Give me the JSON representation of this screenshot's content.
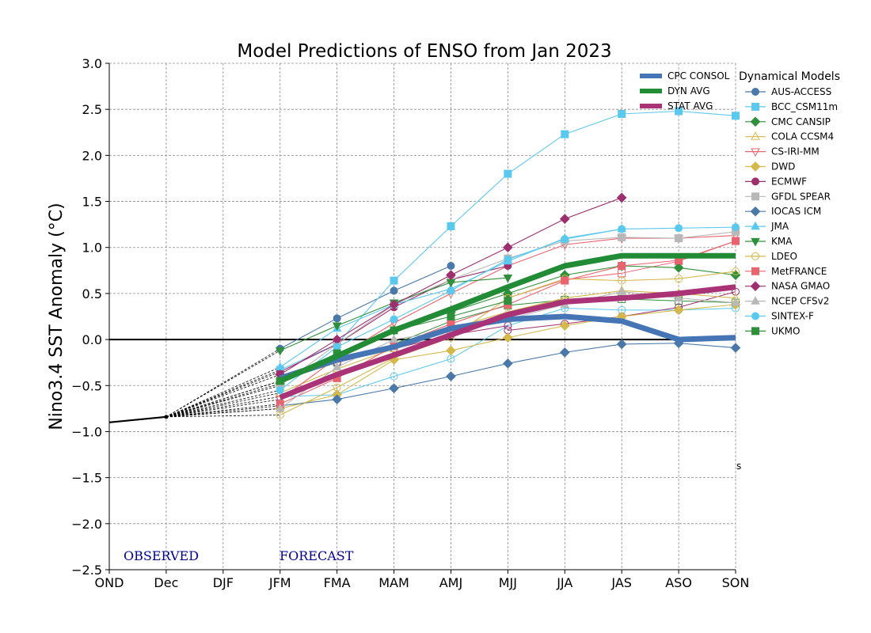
{
  "chart_data": {
    "type": "line",
    "title": "Model Predictions of ENSO from Jan 2023",
    "ylabel": "Nino3.4 SST Anomaly (°C)",
    "xlabel": "",
    "categories": [
      "OND",
      "Dec",
      "DJF",
      "JFM",
      "FMA",
      "MAM",
      "AMJ",
      "MJJ",
      "JJA",
      "JAS",
      "ASO",
      "SON"
    ],
    "ylim": [
      -2.5,
      3.0
    ],
    "yticks": [
      -2.5,
      -2.0,
      -1.5,
      -1.0,
      -0.5,
      0.0,
      0.5,
      1.0,
      1.5,
      2.0,
      2.5,
      3.0
    ],
    "grid": true,
    "legend_position": "top-right, outside",
    "legend_title": "Dynamical Models",
    "annotations": {
      "observed": "OBSERVED",
      "forecast": "FORECAST",
      "stray_mark": "s"
    },
    "observed": {
      "x": [
        "OND",
        "Dec"
      ],
      "values": [
        -0.9,
        -0.84
      ]
    },
    "consensus": [
      {
        "name": "CPC CONSOL",
        "color": "#4575b4",
        "x": [
          "JFM",
          "FMA",
          "MAM",
          "AMJ",
          "MJJ",
          "JJA",
          "JAS",
          "ASO",
          "SON"
        ],
        "values": [
          -0.42,
          -0.22,
          -0.08,
          0.12,
          0.22,
          0.25,
          0.2,
          0.0,
          0.02
        ]
      },
      {
        "name": "DYN AVG",
        "color": "#228b35",
        "x": [
          "JFM",
          "FMA",
          "MAM",
          "AMJ",
          "MJJ",
          "JJA",
          "JAS",
          "ASO",
          "SON"
        ],
        "values": [
          -0.45,
          -0.18,
          0.1,
          0.33,
          0.57,
          0.8,
          0.91,
          0.91,
          0.91
        ]
      },
      {
        "name": "STAT AVG",
        "color": "#aa3377",
        "x": [
          "JFM",
          "FMA",
          "MAM",
          "AMJ",
          "MJJ",
          "JJA",
          "JAS",
          "ASO",
          "SON"
        ],
        "values": [
          -0.63,
          -0.38,
          -0.17,
          0.05,
          0.27,
          0.41,
          0.45,
          0.5,
          0.57
        ]
      }
    ],
    "series": [
      {
        "name": "AUS-ACCESS",
        "color": "#4a78a8",
        "marker": "o",
        "filled": true,
        "x": [
          "JFM",
          "FMA",
          "MAM",
          "AMJ"
        ],
        "values": [
          -0.1,
          0.23,
          0.53,
          0.8
        ]
      },
      {
        "name": "BCC_CSM11m",
        "color": "#5bc8ee",
        "marker": "s",
        "filled": true,
        "x": [
          "JFM",
          "FMA",
          "MAM",
          "AMJ",
          "MJJ",
          "JJA",
          "JAS",
          "ASO",
          "SON"
        ],
        "values": [
          -0.33,
          -0.05,
          0.64,
          1.23,
          1.8,
          2.23,
          2.45,
          2.48,
          2.43
        ]
      },
      {
        "name": "CMC CANSIP",
        "color": "#2f8f3a",
        "marker": "D",
        "filled": true,
        "x": [
          "JFM",
          "FMA",
          "MAM",
          "AMJ",
          "MJJ",
          "JJA",
          "JAS",
          "ASO",
          "SON"
        ],
        "values": [
          -0.48,
          -0.2,
          0.1,
          0.3,
          0.5,
          0.7,
          0.8,
          0.78,
          0.7
        ]
      },
      {
        "name": "COLA CCSM4",
        "color": "#d4b84a",
        "marker": "^",
        "filled": false,
        "x": [
          "JFM",
          "FMA",
          "MAM",
          "AMJ",
          "MJJ",
          "JJA",
          "JAS",
          "ASO",
          "SON"
        ],
        "values": [
          -0.58,
          -0.32,
          -0.1,
          0.12,
          0.3,
          0.45,
          0.53,
          0.5,
          0.45
        ]
      },
      {
        "name": "CS-IRI-MM",
        "color": "#e8646e",
        "marker": "v",
        "filled": false,
        "x": [
          "JFM",
          "FMA",
          "MAM",
          "AMJ",
          "MJJ",
          "JJA",
          "JAS",
          "ASO",
          "SON"
        ],
        "values": [
          -0.65,
          -0.2,
          0.18,
          0.5,
          0.8,
          1.03,
          1.1,
          1.1,
          1.13
        ]
      },
      {
        "name": "DWD",
        "color": "#d4b84a",
        "marker": "D",
        "filled": true,
        "x": [
          "JFM",
          "FMA",
          "MAM",
          "AMJ",
          "MJJ",
          "JJA",
          "JAS",
          "ASO",
          "SON"
        ],
        "values": [
          -0.75,
          -0.6,
          -0.22,
          -0.12,
          0.02,
          0.15,
          0.25,
          0.32,
          0.38
        ]
      },
      {
        "name": "ECMWF",
        "color": "#9e2f6e",
        "marker": "o",
        "filled": true,
        "x": [
          "JFM",
          "FMA",
          "MAM",
          "AMJ",
          "MJJ"
        ],
        "values": [
          -0.35,
          -0.05,
          0.35,
          0.65,
          0.8
        ]
      },
      {
        "name": "GFDL SPEAR",
        "color": "#b8b8b8",
        "marker": "s",
        "filled": true,
        "x": [
          "JFM",
          "FMA",
          "MAM",
          "AMJ",
          "MJJ",
          "JJA",
          "JAS",
          "ASO",
          "SON"
        ],
        "values": [
          -0.5,
          -0.05,
          0.38,
          0.65,
          0.88,
          1.07,
          1.11,
          1.1,
          1.17
        ]
      },
      {
        "name": "IOCAS ICM",
        "color": "#4a78a8",
        "marker": "D",
        "filled": true,
        "x": [
          "JFM",
          "FMA",
          "MAM",
          "AMJ",
          "MJJ",
          "JJA",
          "JAS",
          "ASO",
          "SON"
        ],
        "values": [
          -0.72,
          -0.65,
          -0.53,
          -0.4,
          -0.26,
          -0.14,
          -0.05,
          -0.04,
          -0.09
        ]
      },
      {
        "name": "JMA",
        "color": "#5bc8ee",
        "marker": "^",
        "filled": true,
        "x": [
          "JFM",
          "FMA",
          "MAM",
          "AMJ",
          "MJJ",
          "JJA",
          "JAS"
        ],
        "values": [
          -0.3,
          0.12,
          0.38,
          0.55,
          0.85,
          1.1,
          1.2
        ]
      },
      {
        "name": "KMA",
        "color": "#2f8f3a",
        "marker": "v",
        "filled": true,
        "x": [
          "JFM",
          "FMA",
          "MAM",
          "AMJ",
          "MJJ"
        ],
        "values": [
          -0.12,
          0.15,
          0.4,
          0.62,
          0.67
        ]
      },
      {
        "name": "LDEO",
        "color": "#d4b84a",
        "marker": "o",
        "filled": false,
        "x": [
          "JFM",
          "FMA",
          "MAM",
          "AMJ",
          "MJJ",
          "JJA",
          "JAS",
          "ASO",
          "SON"
        ],
        "values": [
          -0.82,
          -0.52,
          -0.2,
          0.02,
          0.45,
          0.66,
          0.64,
          0.66,
          0.74
        ]
      },
      {
        "name": "MetFRANCE",
        "color": "#e8646e",
        "marker": "s",
        "filled": true,
        "x": [
          "JFM",
          "FMA",
          "MAM",
          "AMJ",
          "MJJ",
          "JJA",
          "JAS",
          "ASO",
          "SON"
        ],
        "values": [
          -0.7,
          -0.42,
          -0.07,
          0.17,
          0.38,
          0.64,
          0.8,
          0.86,
          1.07
        ]
      },
      {
        "name": "NASA GMAO",
        "color": "#9e2f6e",
        "marker": "D",
        "filled": true,
        "x": [
          "JFM",
          "FMA",
          "MAM",
          "AMJ",
          "MJJ",
          "JJA",
          "JAS"
        ],
        "values": [
          -0.38,
          0.0,
          0.38,
          0.7,
          1.0,
          1.31,
          1.54
        ]
      },
      {
        "name": "NCEP CFSv2",
        "color": "#b8b8b8",
        "marker": "^",
        "filled": true,
        "x": [
          "JFM",
          "FMA",
          "MAM",
          "AMJ",
          "MJJ",
          "JJA",
          "JAS",
          "ASO",
          "SON"
        ],
        "values": [
          -0.75,
          -0.3,
          0.0,
          0.1,
          0.22,
          0.38,
          0.52,
          0.45,
          0.4
        ]
      },
      {
        "name": "SINTEX-F",
        "color": "#5bc8ee",
        "marker": "o",
        "filled": true,
        "x": [
          "JFM",
          "FMA",
          "MAM",
          "AMJ",
          "MJJ",
          "JJA",
          "JAS",
          "ASO",
          "SON"
        ],
        "values": [
          -0.55,
          -0.08,
          0.22,
          0.53,
          0.87,
          1.09,
          1.2,
          1.21,
          1.22
        ]
      },
      {
        "name": "UKMO",
        "color": "#2f8f3a",
        "marker": "s",
        "filled": true,
        "x": [
          "JFM",
          "FMA",
          "MAM",
          "AMJ",
          "MJJ"
        ],
        "values": [
          -0.45,
          -0.15,
          0.1,
          0.25,
          0.42
        ]
      }
    ],
    "extra_open_markers": [
      {
        "color": "#5bc8ee",
        "marker": "o",
        "x": [
          "JFM",
          "FMA",
          "MAM",
          "AMJ",
          "MJJ",
          "JJA",
          "JAS",
          "ASO",
          "SON"
        ],
        "values": [
          -0.62,
          -0.6,
          -0.4,
          -0.21,
          0.15,
          0.34,
          0.32,
          0.32,
          0.34
        ]
      },
      {
        "color": "#2f8f3a",
        "marker": "s",
        "x": [
          "JFM",
          "FMA",
          "MAM",
          "AMJ",
          "MJJ",
          "JJA",
          "JAS",
          "ASO",
          "SON"
        ],
        "values": [
          -0.45,
          -0.25,
          -0.05,
          0.2,
          0.37,
          0.43,
          0.44,
          0.42,
          0.4
        ]
      },
      {
        "color": "#e8646e",
        "marker": "s",
        "x": [
          "MJJ",
          "JJA",
          "JAS",
          "ASO",
          "SON"
        ],
        "values": [
          0.45,
          0.65,
          0.72,
          0.85,
          1.07
        ]
      },
      {
        "color": "#9e2f6e",
        "marker": "o",
        "x": [
          "MJJ",
          "JJA",
          "JAS",
          "ASO",
          "SON"
        ],
        "values": [
          0.1,
          0.17,
          0.25,
          0.35,
          0.52
        ]
      },
      {
        "color": "#9e2f6e",
        "marker": "o",
        "x": [
          "FMA",
          "MAM",
          "AMJ",
          "MJJ"
        ],
        "values": [
          -0.25,
          -0.1,
          0.05,
          0.15
        ]
      }
    ]
  }
}
